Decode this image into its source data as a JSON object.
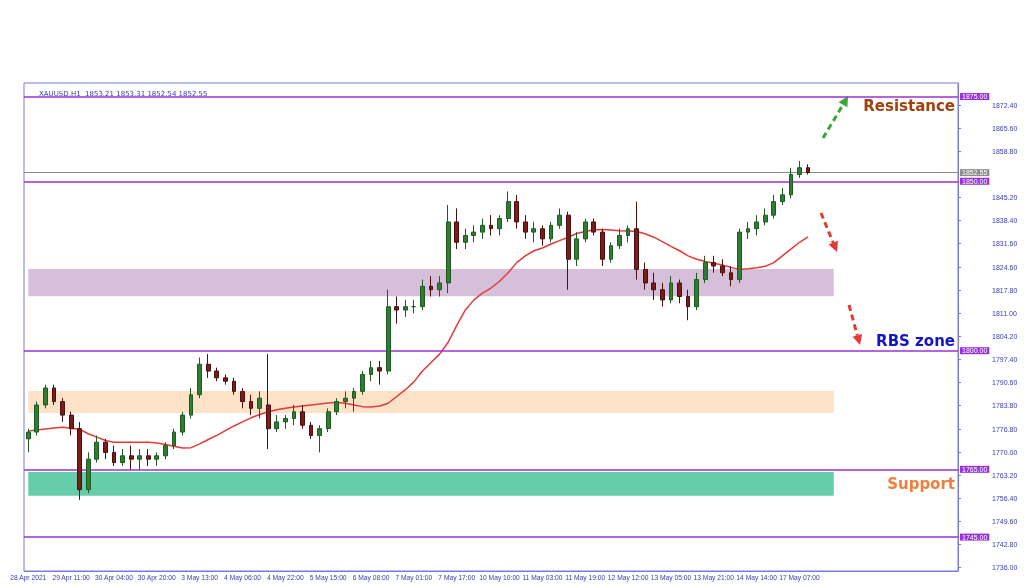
{
  "chart_data": {
    "type": "candlestick",
    "title": "XAUUSD,H1  1853.21 1853.31 1852.54 1852.55",
    "categories": [
      "28 Apr 2021",
      null,
      null,
      null,
      null,
      "29 Apr 11:00",
      null,
      null,
      null,
      null,
      "30 Apr 04:00",
      null,
      null,
      null,
      null,
      "30 Apr 20:00",
      null,
      null,
      null,
      null,
      "3 May 13:00",
      null,
      null,
      null,
      null,
      "4 May 06:00",
      null,
      null,
      null,
      null,
      "4 May 22:00",
      null,
      null,
      null,
      null,
      "5 May 15:00",
      null,
      null,
      null,
      null,
      "6 May 08:00",
      null,
      null,
      null,
      null,
      "7 May 01:00",
      null,
      null,
      null,
      null,
      "7 May 17:00",
      null,
      null,
      null,
      null,
      "10 May 10:00",
      null,
      null,
      null,
      null,
      "11 May 03:00",
      null,
      null,
      null,
      null,
      "11 May 19:00",
      null,
      null,
      null,
      null,
      "12 May 12:00",
      null,
      null,
      null,
      null,
      "13 May 05:00",
      null,
      null,
      null,
      null,
      "13 May 21:00",
      null,
      null,
      null,
      null,
      "14 May 14:00",
      null,
      null,
      null,
      null,
      "17 May 07:00",
      null,
      null,
      null,
      null,
      null,
      null,
      null,
      null,
      null,
      null,
      null,
      null,
      null,
      null,
      null,
      null,
      null,
      null
    ],
    "ohlc": [
      [
        1774,
        1777,
        1770,
        1776
      ],
      [
        1776,
        1785,
        1775,
        1784
      ],
      [
        1784,
        1790,
        1783,
        1789
      ],
      [
        1789,
        1790,
        1784,
        1785
      ],
      [
        1785,
        1786,
        1779,
        1781
      ],
      [
        1781,
        1782,
        1775,
        1777
      ],
      [
        1777,
        1779,
        1756,
        1759
      ],
      [
        1759,
        1770,
        1758,
        1768
      ],
      [
        1768,
        1775,
        1767,
        1773
      ],
      [
        1773,
        1774,
        1768,
        1770
      ],
      [
        1770,
        1772,
        1766,
        1767
      ],
      [
        1767,
        1771,
        1766,
        1769
      ],
      [
        1769,
        1772,
        1765,
        1768
      ],
      [
        1768,
        1771,
        1765,
        1769
      ],
      [
        1769,
        1771,
        1766,
        1768
      ],
      [
        1768,
        1770,
        1766,
        1769
      ],
      [
        1769,
        1773,
        1768,
        1772
      ],
      [
        1772,
        1777,
        1771,
        1776
      ],
      [
        1776,
        1782,
        1775,
        1781
      ],
      [
        1781,
        1789,
        1780,
        1787
      ],
      [
        1787,
        1798,
        1786,
        1796
      ],
      [
        1796,
        1799,
        1792,
        1794
      ],
      [
        1794,
        1795,
        1791,
        1792
      ],
      [
        1792,
        1793,
        1790,
        1791
      ],
      [
        1791,
        1792,
        1787,
        1788
      ],
      [
        1788,
        1789,
        1783,
        1785
      ],
      [
        1785,
        1787,
        1781,
        1783
      ],
      [
        1783,
        1788,
        1780,
        1786
      ],
      [
        1784,
        1799,
        1771,
        1777
      ],
      [
        1777,
        1781,
        1776,
        1779
      ],
      [
        1779,
        1781,
        1777,
        1780
      ],
      [
        1780,
        1784,
        1778,
        1782
      ],
      [
        1782,
        1784,
        1777,
        1778
      ],
      [
        1778,
        1779,
        1774,
        1775
      ],
      [
        1775,
        1778,
        1770,
        1777
      ],
      [
        1777,
        1783,
        1776,
        1782
      ],
      [
        1782,
        1786,
        1781,
        1785
      ],
      [
        1785,
        1788,
        1783,
        1786
      ],
      [
        1786,
        1789,
        1782,
        1788
      ],
      [
        1788,
        1794,
        1787,
        1793
      ],
      [
        1793,
        1797,
        1791,
        1795
      ],
      [
        1795,
        1797,
        1790,
        1794
      ],
      [
        1794,
        1818,
        1793,
        1813
      ],
      [
        1813,
        1816,
        1808,
        1812
      ],
      [
        1812,
        1815,
        1810,
        1813
      ],
      [
        1813,
        1815,
        1811,
        1813
      ],
      [
        1813,
        1821,
        1812,
        1819
      ],
      [
        1819,
        1822,
        1816,
        1818
      ],
      [
        1818,
        1822,
        1816,
        1820
      ],
      [
        1820,
        1843,
        1817,
        1838
      ],
      [
        1838,
        1842,
        1830,
        1832
      ],
      [
        1832,
        1836,
        1830,
        1834
      ],
      [
        1834,
        1837,
        1832,
        1835
      ],
      [
        1835,
        1839,
        1833,
        1837
      ],
      [
        1837,
        1840,
        1834,
        1836
      ],
      [
        1836,
        1840,
        1834,
        1839
      ],
      [
        1839,
        1847,
        1838,
        1844
      ],
      [
        1844,
        1846,
        1836,
        1838
      ],
      [
        1838,
        1840,
        1833,
        1835
      ],
      [
        1835,
        1838,
        1832,
        1836
      ],
      [
        1836,
        1837,
        1831,
        1833
      ],
      [
        1833,
        1838,
        1832,
        1837
      ],
      [
        1837,
        1842,
        1836,
        1840
      ],
      [
        1840,
        1841,
        1818,
        1827
      ],
      [
        1827,
        1835,
        1825,
        1833
      ],
      [
        1833,
        1839,
        1832,
        1838
      ],
      [
        1838,
        1839,
        1834,
        1835
      ],
      [
        1835,
        1836,
        1825,
        1827
      ],
      [
        1827,
        1832,
        1826,
        1831
      ],
      [
        1831,
        1836,
        1830,
        1834
      ],
      [
        1834,
        1837,
        1832,
        1836
      ],
      [
        1836,
        1844,
        1821,
        1824
      ],
      [
        1824,
        1826,
        1818,
        1820
      ],
      [
        1820,
        1823,
        1815,
        1818
      ],
      [
        1818,
        1820,
        1813,
        1815
      ],
      [
        1815,
        1822,
        1814,
        1820
      ],
      [
        1820,
        1821,
        1814,
        1816
      ],
      [
        1816,
        1818,
        1809,
        1813
      ],
      [
        1813,
        1823,
        1812,
        1821
      ],
      [
        1821,
        1828,
        1820,
        1826
      ],
      [
        1826,
        1828,
        1823,
        1825
      ],
      [
        1825,
        1827,
        1822,
        1823
      ],
      [
        1823,
        1825,
        1819,
        1821
      ],
      [
        1821,
        1836,
        1820,
        1835
      ],
      [
        1835,
        1838,
        1833,
        1836
      ],
      [
        1836,
        1840,
        1834,
        1838
      ],
      [
        1838,
        1842,
        1837,
        1840
      ],
      [
        1840,
        1846,
        1839,
        1844
      ],
      [
        1844,
        1848,
        1843,
        1846
      ],
      [
        1846,
        1854,
        1845,
        1852
      ],
      [
        1852,
        1856,
        1851,
        1854
      ],
      [
        1854,
        1855,
        1852,
        1852.55
      ],
      null,
      null,
      null,
      null,
      null,
      null,
      null,
      null,
      null,
      null,
      null,
      null,
      null,
      null,
      null,
      null,
      null
    ],
    "series": [
      {
        "type": "line",
        "color": "#e53935",
        "values": [
          1776.3,
          1776.6,
          1776.9,
          1777.2,
          1777.4,
          1777.1,
          1776.8,
          1775.5,
          1774.5,
          1773.5,
          1773,
          1773,
          1773,
          1773,
          1773,
          1772.8,
          1772.3,
          1771.8,
          1771.3,
          1771.4,
          1772.5,
          1773.8,
          1775,
          1776.4,
          1777.8,
          1779,
          1780.2,
          1781.2,
          1782,
          1782.6,
          1783,
          1783.4,
          1783.7,
          1784,
          1784.3,
          1784.6,
          1784.7,
          1784.5,
          1784,
          1783.5,
          1783.4,
          1783.7,
          1784.5,
          1786.5,
          1788.5,
          1790.8,
          1794,
          1796.5,
          1799,
          1802.5,
          1807.5,
          1812,
          1815,
          1817,
          1818.5,
          1820.5,
          1823,
          1826,
          1828,
          1829.5,
          1830.3,
          1831.5,
          1832.5,
          1833.5,
          1834.6,
          1835.2,
          1835.7,
          1835.8,
          1835.6,
          1835.4,
          1835.3,
          1835.2,
          1834.5,
          1833.5,
          1832.2,
          1830.8,
          1829.5,
          1828,
          1827,
          1826.3,
          1825.8,
          1825.3,
          1824.6,
          1824,
          1824.2,
          1824.5,
          1824.9,
          1826,
          1828,
          1830,
          1832,
          1833.6,
          null,
          null,
          null,
          null,
          null,
          null,
          null,
          null,
          null,
          null,
          null,
          null,
          null,
          null,
          null,
          null,
          null
        ]
      }
    ],
    "marker": "none",
    "ylim": [
      1735,
      1879
    ],
    "yticks": [
      {
        "value": 1736,
        "label": "1736.00"
      },
      {
        "value": 1742.8,
        "label": "1742.80"
      },
      {
        "value": 1749.6,
        "label": "1749.60"
      },
      {
        "value": 1756.4,
        "label": "1756.40"
      },
      {
        "value": 1763.2,
        "label": "1763.20"
      },
      {
        "value": 1770,
        "label": "1770.00"
      },
      {
        "value": 1776.8,
        "label": "1776.80"
      },
      {
        "value": 1783.8,
        "label": "1783.80"
      },
      {
        "value": 1790.6,
        "label": "1790.60"
      },
      {
        "value": 1797.4,
        "label": "1797.40"
      },
      {
        "value": 1804.2,
        "label": "1804.20"
      },
      {
        "value": 1811,
        "label": "1811.00"
      },
      {
        "value": 1817.8,
        "label": "1817.80"
      },
      {
        "value": 1824.6,
        "label": "1824.60"
      },
      {
        "value": 1831.6,
        "label": "1831.60"
      },
      {
        "value": 1838.4,
        "label": "1838.40"
      },
      {
        "value": 1845.2,
        "label": "1845.20"
      },
      {
        "value": 1858.8,
        "label": "1858.80"
      },
      {
        "value": 1865.6,
        "label": "1865.60"
      },
      {
        "value": 1872.4,
        "label": "1872.40"
      }
    ],
    "ref_lines": [
      {
        "axis": "y",
        "value": 1875,
        "label": "1875.00",
        "color": "#9b30d9"
      },
      {
        "axis": "y",
        "value": 1852.55,
        "label": "1852.55",
        "color": "#8c8c8c"
      },
      {
        "axis": "y",
        "value": 1850,
        "label": "1850.00",
        "color": "#9b30d9"
      },
      {
        "axis": "y",
        "value": 1800,
        "label": "1800.00",
        "color": "#9b30d9"
      },
      {
        "axis": "y",
        "value": 1765,
        "label": "1765.00",
        "color": "#9b30d9"
      },
      {
        "axis": "y",
        "value": 1745,
        "label": "1745.00",
        "color": "#9b30d9"
      }
    ],
    "bands": [
      {
        "axis": "y",
        "from": 1816.1,
        "to": 1824.1,
        "color": "#d6bfd9"
      },
      {
        "axis": "y",
        "from": 1781.6,
        "to": 1788.1,
        "color": "#fde2c8"
      },
      {
        "axis": "y",
        "from": 1757.2,
        "to": 1764.2,
        "color": "#66cdaa"
      }
    ],
    "annotations": [
      "Resistance",
      "RBS zone",
      "Support"
    ],
    "grid": false
  }
}
